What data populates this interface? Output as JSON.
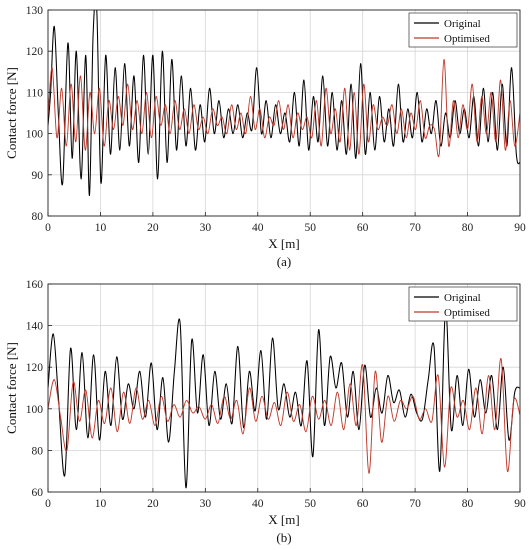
{
  "chart_data": [
    {
      "type": "line",
      "panel_label": "(a)",
      "xlabel": "X [m]",
      "ylabel": "Contact force [N]",
      "xlim": [
        0,
        90
      ],
      "ylim": [
        80,
        130
      ],
      "xticks": [
        0,
        10,
        20,
        30,
        40,
        50,
        60,
        70,
        80,
        90
      ],
      "yticks": [
        80,
        90,
        100,
        110,
        120,
        130
      ],
      "grid": true,
      "legend_position": "top-right",
      "series": [
        {
          "name": "Original",
          "color": "#000000",
          "x": [
            0,
            0.5,
            1.2,
            2,
            2.8,
            3.8,
            4.6,
            5.4,
            6.3,
            7.2,
            7.9,
            8.6,
            9.3,
            10.1,
            11,
            11.9,
            12.8,
            13.7,
            14.6,
            15.5,
            16.4,
            17.3,
            18.2,
            19.1,
            20,
            20.9,
            21.8,
            22.7,
            23.6,
            24.5,
            25.4,
            26.3,
            27.2,
            28.1,
            29,
            29.9,
            30.8,
            31.7,
            32.6,
            33.5,
            34.4,
            35.3,
            36.2,
            37.1,
            38,
            38.9,
            39.8,
            40.7,
            41.6,
            42.5,
            43.4,
            44.3,
            45.2,
            46.1,
            47,
            47.9,
            48.8,
            49.7,
            50.6,
            51.5,
            52.4,
            53.3,
            54.2,
            55.1,
            56,
            56.9,
            57.8,
            58.7,
            59.6,
            60.5,
            61.4,
            62.3,
            63.2,
            64.1,
            65,
            65.9,
            66.8,
            67.7,
            68.6,
            69.5,
            70.4,
            71.3,
            72.2,
            73.1,
            74,
            74.9,
            75.8,
            76.7,
            77.6,
            78.5,
            79.4,
            80.3,
            81.2,
            82.1,
            83,
            83.9,
            84.8,
            85.7,
            86.6,
            87.5,
            88.4,
            89.3,
            90
          ],
          "y": [
            102,
            110,
            126,
            104,
            88,
            122,
            94,
            120,
            89,
            119,
            85,
            124,
            130,
            88,
            119,
            95,
            116,
            96,
            117,
            97,
            114,
            93,
            119,
            95,
            119,
            89,
            120,
            93,
            118,
            96,
            114,
            97,
            111,
            96,
            107,
            98,
            111,
            100,
            108,
            99,
            106,
            100,
            107,
            99,
            105,
            101,
            116,
            100,
            108,
            99,
            107,
            100,
            105,
            98,
            110,
            97,
            113,
            96,
            109,
            98,
            114,
            97,
            110,
            96,
            108,
            95,
            112,
            94,
            117,
            95,
            110,
            96,
            109,
            98,
            106,
            97,
            112,
            98,
            106,
            99,
            110,
            98,
            106,
            100,
            108,
            97,
            105,
            99,
            108,
            100,
            106,
            99,
            109,
            97,
            111,
            98,
            110,
            96,
            112,
            97,
            116,
            95,
            93
          ]
        },
        {
          "name": "Optimised",
          "color": "#c0392b",
          "x": [
            0,
            0.8,
            1.7,
            2.6,
            3.5,
            4.4,
            5.3,
            6.2,
            7.1,
            8,
            8.9,
            9.8,
            10.7,
            11.6,
            12.5,
            13.4,
            14.3,
            15.2,
            16.1,
            17,
            17.9,
            18.8,
            19.7,
            20.6,
            21.5,
            22.4,
            23.3,
            24.2,
            25.1,
            26,
            26.9,
            27.8,
            28.7,
            29.6,
            30.5,
            31.4,
            32.3,
            33.2,
            34.1,
            35,
            35.9,
            36.8,
            37.7,
            38.6,
            39.5,
            40.4,
            41.3,
            42.2,
            43.1,
            44,
            44.9,
            45.8,
            46.7,
            47.6,
            48.5,
            49.4,
            50.3,
            51.2,
            52.1,
            53,
            53.9,
            54.8,
            55.7,
            56.6,
            57.5,
            58.4,
            59.3,
            60.2,
            61.1,
            62,
            62.9,
            63.8,
            64.7,
            65.6,
            66.5,
            67.4,
            68.3,
            69.2,
            70.1,
            71,
            71.9,
            72.8,
            73.7,
            74.6,
            75.5,
            76.4,
            77.3,
            78.2,
            79.1,
            80,
            80.9,
            81.8,
            82.7,
            83.6,
            84.5,
            85.4,
            86.3,
            87.2,
            88.1,
            89,
            90
          ],
          "y": [
            104,
            116,
            99,
            111,
            97,
            112,
            98,
            114,
            96,
            110,
            100,
            111,
            97,
            108,
            101,
            109,
            102,
            112,
            101,
            108,
            100,
            110,
            99,
            109,
            102,
            107,
            100,
            108,
            101,
            106,
            100,
            107,
            101,
            104,
            100,
            106,
            102,
            104,
            100,
            107,
            101,
            105,
            100,
            109,
            101,
            106,
            99,
            104,
            102,
            108,
            101,
            107,
            99,
            105,
            101,
            104,
            99,
            108,
            97,
            111,
            100,
            106,
            98,
            111,
            96,
            110,
            95,
            112,
            98,
            107,
            101,
            104,
            102,
            107,
            100,
            106,
            99,
            105,
            101,
            108,
            99,
            102,
            101,
            95,
            118,
            97,
            108,
            99,
            107,
            101,
            112,
            98,
            109,
            100,
            110,
            98,
            113,
            96,
            108,
            97,
            105
          ]
        }
      ]
    },
    {
      "type": "line",
      "panel_label": "(b)",
      "xlabel": "X [m]",
      "ylabel": "Contact force [N]",
      "xlim": [
        0,
        90
      ],
      "ylim": [
        60,
        160
      ],
      "xticks": [
        0,
        10,
        20,
        30,
        40,
        50,
        60,
        70,
        80,
        90
      ],
      "yticks": [
        60,
        80,
        100,
        120,
        140,
        160
      ],
      "grid": true,
      "legend_position": "top-right",
      "series": [
        {
          "name": "Original",
          "color": "#000000",
          "x": [
            0,
            1,
            2,
            3.2,
            4.3,
            5.4,
            6.5,
            7.6,
            8.7,
            9.8,
            10.9,
            12,
            13.1,
            14.2,
            15.3,
            16.4,
            17.5,
            18.6,
            19.7,
            20.8,
            21.9,
            23,
            24.1,
            25.2,
            26.3,
            27.4,
            28.5,
            29.6,
            30.7,
            31.8,
            32.9,
            34,
            35.1,
            36.2,
            37.3,
            38.4,
            39.5,
            40.6,
            41.7,
            42.8,
            43.9,
            45,
            46.1,
            47.2,
            48.3,
            49.4,
            50.5,
            51.6,
            52.7,
            53.8,
            54.9,
            56,
            57.1,
            58.2,
            59.3,
            60.4,
            61.5,
            62.6,
            63.7,
            64.8,
            65.9,
            67,
            68.1,
            69.2,
            70.3,
            71.4,
            72.5,
            73.6,
            74.7,
            75.8,
            76.9,
            78,
            79.1,
            80.2,
            81.3,
            82.4,
            83.5,
            84.6,
            85.7,
            86.8,
            87.9,
            89,
            90
          ],
          "y": [
            110,
            136,
            105,
            68,
            129,
            90,
            127,
            86,
            126,
            85,
            118,
            92,
            125,
            95,
            112,
            100,
            118,
            96,
            122,
            90,
            115,
            84,
            118,
            141,
            62,
            133,
            98,
            126,
            92,
            118,
            95,
            112,
            93,
            130,
            91,
            118,
            99,
            128,
            95,
            134,
            100,
            112,
            96,
            108,
            92,
            123,
            77,
            138,
            92,
            125,
            110,
            122,
            96,
            118,
            90,
            121,
            96,
            110,
            98,
            116,
            103,
            109,
            96,
            107,
            98,
            95,
            114,
            130,
            70,
            148,
            90,
            116,
            92,
            119,
            96,
            114,
            98,
            116,
            90,
            120,
            85,
            108,
            110
          ]
        },
        {
          "name": "Optimised",
          "color": "#c0392b",
          "x": [
            0,
            1.2,
            2.4,
            3.6,
            4.8,
            6,
            7.2,
            8.4,
            9.6,
            10.8,
            12,
            13.2,
            14.4,
            15.6,
            16.8,
            18,
            19.2,
            20.4,
            21.6,
            22.8,
            24,
            25.2,
            26.4,
            27.6,
            28.8,
            30,
            31.2,
            32.4,
            33.6,
            34.8,
            36,
            37.2,
            38.4,
            39.6,
            40.8,
            42,
            43.2,
            44.4,
            45.6,
            46.8,
            48,
            49.2,
            50.4,
            51.6,
            52.8,
            54,
            55.2,
            56.4,
            57.6,
            58.8,
            60,
            61.2,
            62.4,
            63.6,
            64.8,
            66,
            67.2,
            68.4,
            69.6,
            70.8,
            72,
            73.2,
            74.4,
            75.6,
            76.8,
            78,
            79.2,
            80.4,
            81.6,
            82.8,
            84,
            85.2,
            86.4,
            87.6,
            88.8,
            90
          ],
          "y": [
            100,
            114,
            96,
            80,
            113,
            94,
            109,
            86,
            104,
            93,
            110,
            89,
            108,
            93,
            110,
            95,
            104,
            92,
            106,
            94,
            102,
            96,
            104,
            98,
            101,
            95,
            102,
            93,
            106,
            95,
            104,
            88,
            110,
            94,
            106,
            95,
            103,
            92,
            108,
            94,
            102,
            89,
            106,
            95,
            104,
            92,
            108,
            90,
            112,
            92,
            121,
            69,
            118,
            84,
            106,
            94,
            104,
            100,
            106,
            95,
            100,
            94,
            116,
            72,
            110,
            96,
            104,
            90,
            110,
            88,
            116,
            90,
            124,
            70,
            104,
            97
          ]
        }
      ]
    }
  ]
}
